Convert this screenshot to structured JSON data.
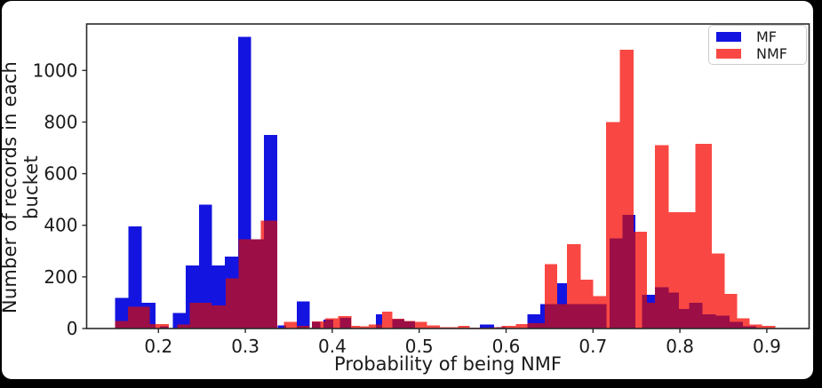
{
  "figure": {
    "background_color": "#000000",
    "panel_color": "#ffffff"
  },
  "chart_data": {
    "type": "bar",
    "subtype": "overlaid-histograms",
    "title": "",
    "xlabel": "Probability of being NMF",
    "ylabel": "Number of records in each bucket",
    "xlim": [
      0.117,
      0.949
    ],
    "ylim": [
      0,
      1180
    ],
    "xticks": [
      0.2,
      0.3,
      0.4,
      0.5,
      0.6,
      0.7,
      0.8,
      0.9
    ],
    "yticks": [
      0,
      200,
      400,
      600,
      800,
      1000
    ],
    "grid": false,
    "legend_position": "upper right",
    "legend": [
      {
        "label": "MF",
        "color": "#1414e0"
      },
      {
        "label": "NMF",
        "color": "#f94843"
      }
    ],
    "overlap_color": "#9c0e46",
    "axis_color": "#2a2a2a",
    "tick_label_color": "#1a1a1a",
    "series": [
      {
        "name": "MF",
        "color": "#1414e0",
        "bars": [
          [
            0.15,
            0.1655,
            118
          ],
          [
            0.1655,
            0.181,
            395
          ],
          [
            0.181,
            0.1965,
            100
          ],
          [
            0.2015,
            0.2115,
            8
          ],
          [
            0.2165,
            0.2315,
            60
          ],
          [
            0.2315,
            0.2465,
            245
          ],
          [
            0.2465,
            0.2615,
            480
          ],
          [
            0.2615,
            0.2765,
            245
          ],
          [
            0.2765,
            0.2915,
            278
          ],
          [
            0.2915,
            0.3065,
            1130
          ],
          [
            0.3065,
            0.3215,
            345
          ],
          [
            0.3215,
            0.3365,
            750
          ],
          [
            0.337,
            0.347,
            12
          ],
          [
            0.359,
            0.374,
            105
          ],
          [
            0.3765,
            0.3865,
            25
          ],
          [
            0.39,
            0.401,
            35
          ],
          [
            0.409,
            0.4215,
            42
          ],
          [
            0.45,
            0.4575,
            55
          ],
          [
            0.469,
            0.483,
            36
          ],
          [
            0.483,
            0.495,
            27
          ],
          [
            0.57,
            0.586,
            15
          ],
          [
            0.589,
            0.6,
            6
          ],
          [
            0.6245,
            0.6395,
            55
          ],
          [
            0.6395,
            0.659,
            95
          ],
          [
            0.659,
            0.67,
            175
          ],
          [
            0.67,
            0.686,
            95
          ],
          [
            0.686,
            0.7,
            95
          ],
          [
            0.7,
            0.7155,
            95
          ],
          [
            0.719,
            0.734,
            350
          ],
          [
            0.734,
            0.749,
            440
          ],
          [
            0.7565,
            0.7715,
            130
          ],
          [
            0.7715,
            0.787,
            160
          ],
          [
            0.787,
            0.799,
            140
          ],
          [
            0.799,
            0.8105,
            75
          ],
          [
            0.8105,
            0.826,
            100
          ],
          [
            0.826,
            0.8415,
            55
          ],
          [
            0.8415,
            0.857,
            50
          ],
          [
            0.857,
            0.8725,
            25
          ],
          [
            0.8725,
            0.888,
            8
          ]
        ]
      },
      {
        "name": "NMF",
        "color": "#f94843",
        "bars": [
          [
            0.15,
            0.165,
            30
          ],
          [
            0.165,
            0.19,
            85
          ],
          [
            0.19,
            0.212,
            18
          ],
          [
            0.2215,
            0.236,
            16
          ],
          [
            0.236,
            0.261,
            100
          ],
          [
            0.261,
            0.2775,
            90
          ],
          [
            0.2775,
            0.292,
            195
          ],
          [
            0.292,
            0.318,
            345
          ],
          [
            0.318,
            0.3365,
            418
          ],
          [
            0.3445,
            0.359,
            25
          ],
          [
            0.359,
            0.374,
            10
          ],
          [
            0.3765,
            0.392,
            28
          ],
          [
            0.392,
            0.407,
            40
          ],
          [
            0.407,
            0.422,
            48
          ],
          [
            0.422,
            0.432,
            10
          ],
          [
            0.432,
            0.442,
            8
          ],
          [
            0.442,
            0.45,
            15
          ],
          [
            0.45,
            0.4575,
            15
          ],
          [
            0.4575,
            0.469,
            65
          ],
          [
            0.469,
            0.483,
            38
          ],
          [
            0.483,
            0.495,
            29
          ],
          [
            0.495,
            0.509,
            25
          ],
          [
            0.509,
            0.524,
            12
          ],
          [
            0.524,
            0.545,
            6
          ],
          [
            0.545,
            0.558,
            10
          ],
          [
            0.558,
            0.586,
            4
          ],
          [
            0.586,
            0.595,
            6
          ],
          [
            0.595,
            0.611,
            10
          ],
          [
            0.611,
            0.6245,
            18
          ],
          [
            0.6245,
            0.6445,
            20
          ],
          [
            0.6445,
            0.659,
            250
          ],
          [
            0.659,
            0.67,
            95
          ],
          [
            0.67,
            0.686,
            327
          ],
          [
            0.686,
            0.7,
            190
          ],
          [
            0.7,
            0.715,
            125
          ],
          [
            0.715,
            0.731,
            800
          ],
          [
            0.731,
            0.7465,
            1080
          ],
          [
            0.7465,
            0.762,
            375
          ],
          [
            0.762,
            0.7715,
            100
          ],
          [
            0.7715,
            0.787,
            710
          ],
          [
            0.787,
            0.818,
            450
          ],
          [
            0.818,
            0.8365,
            716
          ],
          [
            0.8365,
            0.8515,
            290
          ],
          [
            0.8515,
            0.866,
            135
          ],
          [
            0.866,
            0.88,
            39
          ],
          [
            0.88,
            0.8945,
            15
          ],
          [
            0.8945,
            0.91,
            10
          ]
        ]
      }
    ]
  }
}
